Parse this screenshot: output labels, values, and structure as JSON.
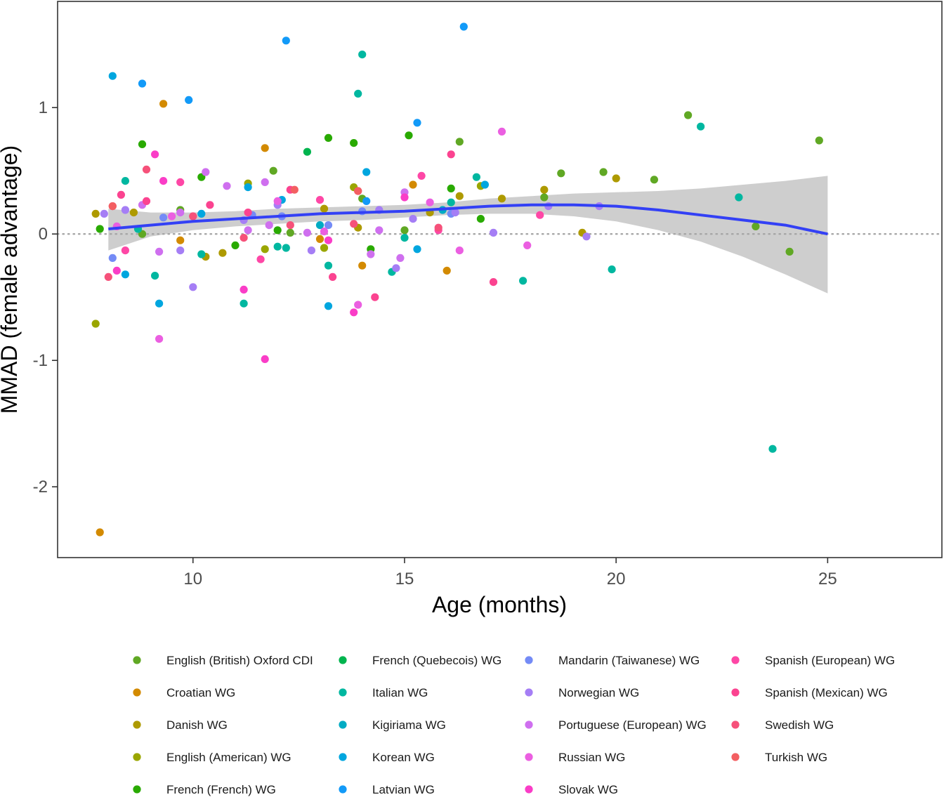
{
  "chart_data": {
    "type": "scatter",
    "title": "",
    "xlabel": "Age (months)",
    "ylabel": "MMAD (female advantage)",
    "xlim": [
      6.8,
      27.7
    ],
    "ylim": [
      -2.56,
      1.84
    ],
    "x_ticks": [
      10,
      15,
      20,
      25
    ],
    "y_ticks": [
      -2,
      -1,
      0,
      1
    ],
    "grid": false,
    "reference_line": {
      "y": 0,
      "style": "dotted",
      "color": "#a6a6a6"
    },
    "legend_placement": "bottom",
    "series": [
      {
        "name": "English (British) Oxford CDI",
        "color": "#60A824",
        "points": [
          [
            8.8,
            0.0
          ],
          [
            9.7,
            0.19
          ],
          [
            11.9,
            0.5
          ],
          [
            12.3,
            0.01
          ],
          [
            14.0,
            0.28
          ],
          [
            15.0,
            0.03
          ],
          [
            16.3,
            0.73
          ],
          [
            18.3,
            0.29
          ],
          [
            18.7,
            0.48
          ],
          [
            19.7,
            0.49
          ],
          [
            20.9,
            0.43
          ],
          [
            21.7,
            0.94
          ],
          [
            23.3,
            0.06
          ],
          [
            24.1,
            -0.14
          ],
          [
            24.8,
            0.74
          ]
        ]
      },
      {
        "name": "Croatian WG",
        "color": "#D38A00",
        "points": [
          [
            7.8,
            -2.36
          ],
          [
            9.3,
            1.03
          ],
          [
            9.7,
            -0.05
          ],
          [
            11.7,
            0.68
          ],
          [
            13.0,
            -0.04
          ],
          [
            14.0,
            -0.25
          ],
          [
            15.2,
            0.39
          ],
          [
            16.0,
            -0.29
          ]
        ]
      },
      {
        "name": "Danish WG",
        "color": "#AE9A00",
        "points": [
          [
            7.7,
            0.16
          ],
          [
            8.6,
            0.17
          ],
          [
            10.3,
            -0.18
          ],
          [
            10.7,
            -0.15
          ],
          [
            13.1,
            0.2
          ],
          [
            13.9,
            0.05
          ],
          [
            15.6,
            0.17
          ],
          [
            16.3,
            0.3
          ],
          [
            17.3,
            0.28
          ],
          [
            18.3,
            0.35
          ],
          [
            19.2,
            0.01
          ],
          [
            20.0,
            0.44
          ]
        ]
      },
      {
        "name": "English (American) WG",
        "color": "#9AA600",
        "points": [
          [
            7.7,
            -0.71
          ],
          [
            11.3,
            0.4
          ],
          [
            11.7,
            -0.12
          ],
          [
            13.1,
            -0.11
          ],
          [
            13.8,
            0.37
          ],
          [
            16.8,
            0.38
          ]
        ]
      },
      {
        "name": "French (French) WG",
        "color": "#29AA00",
        "points": [
          [
            7.8,
            0.04
          ],
          [
            8.8,
            0.71
          ],
          [
            10.2,
            0.45
          ],
          [
            11.0,
            -0.09
          ],
          [
            12.0,
            0.03
          ],
          [
            13.2,
            0.76
          ],
          [
            13.8,
            0.72
          ],
          [
            14.2,
            -0.12
          ],
          [
            15.1,
            0.78
          ],
          [
            16.1,
            0.36
          ],
          [
            16.8,
            0.12
          ]
        ]
      },
      {
        "name": "French (Quebecois) WG",
        "color": "#00B44E",
        "points": [
          [
            12.7,
            0.65
          ]
        ]
      },
      {
        "name": "Italian WG",
        "color": "#00B7A0",
        "points": [
          [
            8.4,
            0.42
          ],
          [
            8.7,
            0.04
          ],
          [
            9.1,
            -0.33
          ],
          [
            10.2,
            -0.16
          ],
          [
            11.2,
            -0.55
          ],
          [
            12.0,
            -0.1
          ],
          [
            12.2,
            -0.11
          ],
          [
            13.2,
            -0.25
          ],
          [
            13.9,
            1.11
          ],
          [
            14.0,
            1.42
          ],
          [
            14.7,
            -0.3
          ],
          [
            15.0,
            -0.03
          ],
          [
            16.1,
            0.25
          ],
          [
            16.7,
            0.45
          ],
          [
            17.8,
            -0.37
          ],
          [
            19.9,
            -0.28
          ],
          [
            22.0,
            0.85
          ],
          [
            22.9,
            0.29
          ],
          [
            23.7,
            -1.7
          ]
        ]
      },
      {
        "name": "Kigiriama WG",
        "color": "#00ABC3",
        "points": [
          [
            13.0,
            0.07
          ],
          [
            15.9,
            0.19
          ]
        ]
      },
      {
        "name": "Korean WG",
        "color": "#00A6DF",
        "points": [
          [
            8.1,
            1.25
          ],
          [
            8.4,
            -0.32
          ],
          [
            9.2,
            -0.55
          ],
          [
            10.2,
            0.16
          ],
          [
            11.3,
            0.37
          ],
          [
            12.1,
            0.27
          ],
          [
            13.2,
            -0.57
          ],
          [
            14.1,
            0.49
          ],
          [
            15.3,
            -0.12
          ],
          [
            16.9,
            0.39
          ]
        ]
      },
      {
        "name": "Latvian WG",
        "color": "#129AF8",
        "points": [
          [
            8.8,
            1.19
          ],
          [
            9.9,
            1.06
          ],
          [
            12.2,
            1.53
          ],
          [
            14.1,
            0.26
          ],
          [
            15.3,
            0.88
          ],
          [
            16.4,
            1.64
          ]
        ]
      },
      {
        "name": "Mandarin (Taiwanese) WG",
        "color": "#748BF6",
        "points": [
          [
            8.1,
            -0.19
          ],
          [
            9.3,
            0.13
          ],
          [
            11.4,
            0.15
          ],
          [
            12.1,
            0.14
          ],
          [
            13.2,
            0.07
          ],
          [
            14.0,
            0.18
          ],
          [
            16.1,
            0.16
          ]
        ]
      },
      {
        "name": "Norwegian WG",
        "color": "#A57EF5",
        "points": [
          [
            7.9,
            0.16
          ],
          [
            8.4,
            0.19
          ],
          [
            9.7,
            -0.13
          ],
          [
            10.0,
            -0.42
          ],
          [
            11.2,
            0.11
          ],
          [
            12.0,
            0.23
          ],
          [
            12.8,
            -0.13
          ],
          [
            14.4,
            0.19
          ],
          [
            14.8,
            -0.27
          ],
          [
            15.2,
            0.12
          ],
          [
            16.2,
            0.17
          ],
          [
            17.1,
            0.01
          ],
          [
            18.4,
            0.22
          ],
          [
            19.3,
            -0.02
          ],
          [
            19.6,
            0.22
          ]
        ]
      },
      {
        "name": "Portuguese (European) WG",
        "color": "#CF6FEF",
        "points": [
          [
            8.8,
            0.23
          ],
          [
            9.2,
            -0.14
          ],
          [
            9.7,
            0.17
          ],
          [
            10.3,
            0.49
          ],
          [
            10.8,
            0.38
          ],
          [
            11.3,
            0.03
          ],
          [
            11.7,
            0.41
          ],
          [
            11.8,
            0.07
          ],
          [
            12.7,
            0.01
          ],
          [
            14.2,
            -0.16
          ],
          [
            14.4,
            0.03
          ],
          [
            14.9,
            -0.19
          ],
          [
            15.0,
            0.33
          ]
        ]
      },
      {
        "name": "Russian WG",
        "color": "#EB5FE1",
        "points": [
          [
            8.2,
            0.06
          ],
          [
            9.2,
            -0.83
          ],
          [
            9.5,
            0.14
          ],
          [
            12.0,
            0.26
          ],
          [
            13.1,
            0.02
          ],
          [
            13.9,
            -0.56
          ],
          [
            15.6,
            0.25
          ],
          [
            16.3,
            -0.13
          ],
          [
            17.3,
            0.81
          ],
          [
            17.9,
            -0.09
          ]
        ]
      },
      {
        "name": "Slovak WG",
        "color": "#FA3DC7",
        "points": [
          [
            8.2,
            -0.29
          ],
          [
            9.1,
            0.63
          ],
          [
            9.3,
            0.42
          ],
          [
            11.2,
            -0.44
          ],
          [
            11.7,
            -0.99
          ],
          [
            13.2,
            -0.05
          ],
          [
            13.8,
            -0.62
          ],
          [
            15.0,
            0.29
          ]
        ]
      },
      {
        "name": "Spanish (European) WG",
        "color": "#FE47A6",
        "points": [
          [
            8.4,
            -0.13
          ],
          [
            9.7,
            0.41
          ],
          [
            10.0,
            0.14
          ],
          [
            11.6,
            -0.2
          ],
          [
            13.0,
            0.27
          ],
          [
            13.9,
            0.34
          ],
          [
            15.4,
            0.46
          ],
          [
            15.8,
            0.03
          ],
          [
            18.2,
            0.15
          ]
        ]
      },
      {
        "name": "Spanish (Mexican) WG",
        "color": "#FB4390",
        "points": [
          [
            8.1,
            0.22
          ],
          [
            8.3,
            0.31
          ],
          [
            8.9,
            0.26
          ],
          [
            10.4,
            0.23
          ],
          [
            11.3,
            0.17
          ],
          [
            12.3,
            0.35
          ],
          [
            13.3,
            -0.34
          ],
          [
            14.3,
            -0.5
          ],
          [
            16.1,
            0.63
          ],
          [
            17.1,
            -0.38
          ]
        ]
      },
      {
        "name": "Swedish WG",
        "color": "#F6517A",
        "points": [
          [
            8.0,
            -0.34
          ],
          [
            8.9,
            0.51
          ],
          [
            10.0,
            0.14
          ],
          [
            11.2,
            -0.03
          ],
          [
            12.3,
            0.07
          ],
          [
            13.8,
            0.08
          ],
          [
            15.8,
            0.05
          ]
        ]
      },
      {
        "name": "Turkish WG",
        "color": "#F35F62",
        "points": [
          [
            8.1,
            0.22
          ],
          [
            12.4,
            0.35
          ],
          [
            13.9,
            0.34
          ]
        ]
      }
    ],
    "trend": {
      "method": "smooth",
      "color": "#3340F5",
      "ci_fill": "#BEBEBE",
      "points": [
        [
          8.0,
          0.04
        ],
        [
          9.0,
          0.07
        ],
        [
          10.0,
          0.1
        ],
        [
          11.0,
          0.12
        ],
        [
          12.0,
          0.14
        ],
        [
          13.0,
          0.16
        ],
        [
          14.0,
          0.17
        ],
        [
          15.0,
          0.18
        ],
        [
          16.0,
          0.2
        ],
        [
          17.0,
          0.22
        ],
        [
          18.0,
          0.23
        ],
        [
          19.0,
          0.23
        ],
        [
          20.0,
          0.22
        ],
        [
          21.0,
          0.19
        ],
        [
          22.0,
          0.15
        ],
        [
          23.0,
          0.11
        ],
        [
          24.0,
          0.07
        ],
        [
          25.0,
          0.0
        ]
      ],
      "ci_upper": [
        [
          8.0,
          0.2
        ],
        [
          9.0,
          0.17
        ],
        [
          10.0,
          0.17
        ],
        [
          11.0,
          0.18
        ],
        [
          12.0,
          0.2
        ],
        [
          13.0,
          0.21
        ],
        [
          14.0,
          0.22
        ],
        [
          15.0,
          0.23
        ],
        [
          16.0,
          0.25
        ],
        [
          17.0,
          0.28
        ],
        [
          18.0,
          0.3
        ],
        [
          19.0,
          0.32
        ],
        [
          20.0,
          0.33
        ],
        [
          21.0,
          0.34
        ],
        [
          22.0,
          0.36
        ],
        [
          23.0,
          0.39
        ],
        [
          24.0,
          0.42
        ],
        [
          25.0,
          0.46
        ]
      ],
      "ci_lower": [
        [
          8.0,
          -0.13
        ],
        [
          9.0,
          -0.02
        ],
        [
          10.0,
          0.03
        ],
        [
          11.0,
          0.06
        ],
        [
          12.0,
          0.08
        ],
        [
          13.0,
          0.1
        ],
        [
          14.0,
          0.11
        ],
        [
          15.0,
          0.13
        ],
        [
          16.0,
          0.15
        ],
        [
          17.0,
          0.16
        ],
        [
          18.0,
          0.16
        ],
        [
          19.0,
          0.14
        ],
        [
          20.0,
          0.1
        ],
        [
          21.0,
          0.03
        ],
        [
          22.0,
          -0.06
        ],
        [
          23.0,
          -0.18
        ],
        [
          24.0,
          -0.32
        ],
        [
          25.0,
          -0.47
        ]
      ]
    }
  }
}
